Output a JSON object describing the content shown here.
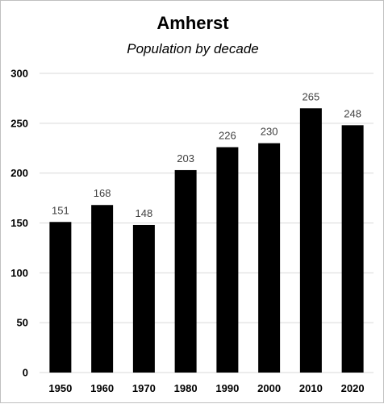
{
  "chart_data": {
    "type": "bar",
    "title": "Amherst",
    "subtitle": "Population by decade",
    "xlabel": "",
    "ylabel": "",
    "categories": [
      "1950",
      "1960",
      "1970",
      "1980",
      "1990",
      "2000",
      "2010",
      "2020"
    ],
    "values": [
      151,
      168,
      148,
      203,
      226,
      230,
      265,
      248
    ],
    "data_labels": [
      "151",
      "168",
      "148",
      "203",
      "226",
      "230",
      "265",
      "248"
    ],
    "ylim": [
      0,
      300
    ],
    "yticks": [
      0,
      50,
      100,
      150,
      200,
      250,
      300
    ],
    "ytick_labels": [
      "0",
      "50",
      "100",
      "150",
      "200",
      "250",
      "300"
    ],
    "grid": true,
    "legend": "none",
    "bar_color": "#000000",
    "label_color": "#404040",
    "grid_color": "#d9d9d9"
  }
}
